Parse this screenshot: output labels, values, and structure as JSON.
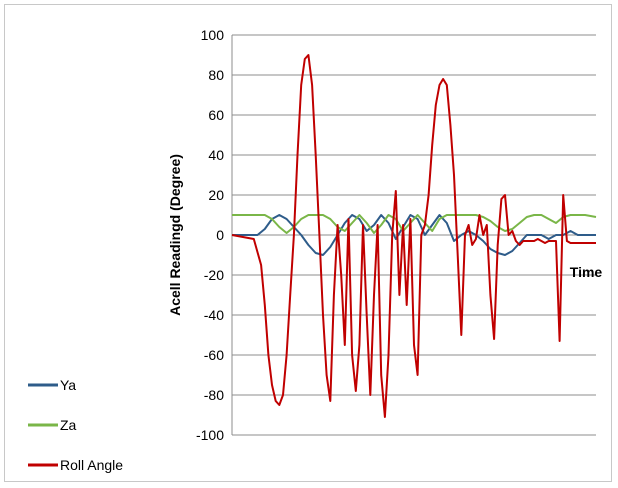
{
  "chart_data": {
    "type": "line",
    "ylabel": "Acell Readingd (Degree)",
    "xlabel": "Time",
    "ylim": [
      -100,
      100
    ],
    "yticks": [
      100,
      80,
      60,
      40,
      20,
      0,
      -20,
      -40,
      -60,
      -80,
      -100
    ],
    "xlim": [
      0,
      100
    ],
    "grid": true,
    "legend_position": "left",
    "series": [
      {
        "name": "Ya",
        "color": "#2e5c8a",
        "x": [
          0,
          7,
          9,
          11,
          13,
          15,
          17,
          19,
          21,
          23,
          25,
          27,
          29,
          31,
          33,
          35,
          37,
          39,
          41,
          43,
          45,
          47,
          49,
          51,
          53,
          55,
          57,
          59,
          61,
          63,
          65,
          67,
          69,
          71,
          73,
          75,
          77,
          79,
          81,
          83,
          85,
          87,
          89,
          91,
          93,
          95,
          97,
          100
        ],
        "y": [
          0,
          0,
          3,
          8,
          10,
          8,
          4,
          0,
          -5,
          -9,
          -10,
          -6,
          0,
          6,
          10,
          8,
          2,
          5,
          10,
          6,
          -2,
          4,
          10,
          8,
          0,
          5,
          10,
          6,
          -3,
          0,
          2,
          0,
          -3,
          -7,
          -9,
          -10,
          -8,
          -4,
          0,
          0,
          0,
          -2,
          0,
          0,
          2,
          0,
          0,
          0
        ]
      },
      {
        "name": "Za",
        "color": "#7ab648",
        "x": [
          0,
          7,
          9,
          11,
          13,
          15,
          17,
          19,
          21,
          23,
          25,
          27,
          29,
          31,
          33,
          35,
          37,
          39,
          41,
          43,
          45,
          47,
          49,
          51,
          53,
          55,
          57,
          59,
          61,
          63,
          65,
          67,
          69,
          71,
          73,
          75,
          77,
          79,
          81,
          83,
          85,
          87,
          89,
          91,
          93,
          95,
          97,
          100
        ],
        "y": [
          10,
          10,
          10,
          8,
          4,
          1,
          4,
          8,
          10,
          10,
          10,
          8,
          4,
          2,
          6,
          10,
          6,
          1,
          5,
          10,
          8,
          2,
          6,
          10,
          6,
          2,
          8,
          10,
          10,
          10,
          10,
          10,
          9,
          7,
          4,
          2,
          3,
          6,
          9,
          10,
          10,
          8,
          6,
          9,
          10,
          10,
          10,
          9
        ]
      },
      {
        "name": "Roll Angle",
        "color": "#c00000",
        "x": [
          0,
          6,
          8,
          9,
          10,
          11,
          12,
          13,
          14,
          15,
          16,
          17,
          18,
          19,
          20,
          21,
          22,
          23,
          24,
          25,
          26,
          27,
          28,
          29,
          30,
          31,
          32,
          33,
          34,
          35,
          36,
          37,
          38,
          39,
          40,
          41,
          42,
          43,
          44,
          45,
          46,
          47,
          48,
          49,
          50,
          51,
          52,
          53,
          54,
          55,
          56,
          57,
          58,
          59,
          60,
          61,
          62,
          63,
          64,
          65,
          66,
          67,
          68,
          69,
          70,
          71,
          72,
          73,
          74,
          75,
          76,
          77,
          78,
          79,
          80,
          81,
          82,
          83,
          84,
          85,
          86,
          87,
          88,
          89,
          90,
          91,
          92,
          93,
          94,
          95,
          96,
          97,
          98,
          100
        ],
        "y": [
          0,
          -2,
          -15,
          -35,
          -60,
          -75,
          -83,
          -85,
          -80,
          -60,
          -30,
          0,
          40,
          75,
          88,
          90,
          75,
          40,
          0,
          -40,
          -70,
          -83,
          -30,
          5,
          -20,
          -55,
          8,
          -60,
          -78,
          -55,
          5,
          -40,
          -80,
          -30,
          5,
          -70,
          -91,
          -60,
          0,
          22,
          -30,
          5,
          -35,
          8,
          -55,
          -70,
          0,
          5,
          20,
          45,
          65,
          75,
          78,
          75,
          55,
          30,
          -10,
          -50,
          0,
          5,
          -5,
          -2,
          10,
          0,
          5,
          -30,
          -52,
          -5,
          18,
          20,
          0,
          2,
          -3,
          -5,
          -3,
          -3,
          -3,
          -3,
          -2,
          -3,
          -4,
          -3,
          -3,
          -3,
          -53,
          20,
          -3,
          -4,
          -4,
          -4,
          -4,
          -4,
          -4,
          -4
        ]
      }
    ]
  }
}
